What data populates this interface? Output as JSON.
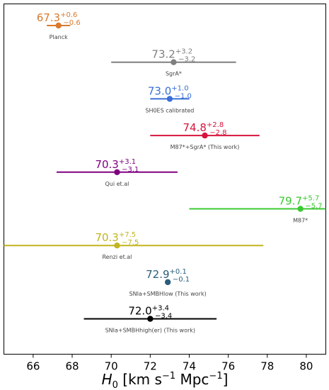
{
  "chart_data": {
    "type": "errorbar",
    "xlim": [
      64.5,
      81
    ],
    "xlabel": "H_0 [km s^-1 Mpc^-1]",
    "xticks": [
      66,
      68,
      70,
      72,
      74,
      76,
      78,
      80
    ],
    "grid": false,
    "series": [
      {
        "name": "Planck",
        "value": 67.3,
        "plus": 0.6,
        "minus": 0.6,
        "value_label": "67.3",
        "plus_label": "+0.6",
        "minus_label": "−0.6",
        "color": "#d97a2e"
      },
      {
        "name": "SgrA*",
        "value": 73.2,
        "plus": 3.2,
        "minus": 3.2,
        "value_label": "73.2",
        "plus_label": "+3.2",
        "minus_label": "−3.2",
        "color": "#7f7f7f"
      },
      {
        "name": "SH0ES calibrated",
        "value": 73.0,
        "plus": 1.0,
        "minus": 1.0,
        "value_label": "73.0",
        "plus_label": "+1.0",
        "minus_label": "−1.0",
        "color": "#3a6fd6"
      },
      {
        "name": "M87*+SgrA* (This work)",
        "value": 74.8,
        "plus": 2.8,
        "minus": 2.8,
        "value_label": "74.8",
        "plus_label": "+2.8",
        "minus_label": "−2.8",
        "color": "#d6143c"
      },
      {
        "name": "Qui et.al",
        "value": 70.3,
        "plus": 3.1,
        "minus": 3.1,
        "value_label": "70.3",
        "plus_label": "+3.1",
        "minus_label": "−3.1",
        "color": "#800080"
      },
      {
        "name": "M87*",
        "value": 79.7,
        "plus": 5.7,
        "minus": 5.7,
        "value_label": "79.7",
        "plus_label": "+5.7",
        "minus_label": "−5.7",
        "color": "#3cc832"
      },
      {
        "name": "Renzi et.al",
        "value": 70.3,
        "plus": 7.5,
        "minus": 7.5,
        "value_label": "70.3",
        "plus_label": "+7.5",
        "minus_label": "−7.5",
        "color": "#c2b51e"
      },
      {
        "name": "SNIa+SMBHlow (This work)",
        "value": 72.9,
        "plus": 0.1,
        "minus": 0.1,
        "value_label": "72.9",
        "plus_label": "+0.1",
        "minus_label": "−0.1",
        "color": "#2a5d7c"
      },
      {
        "name": "SNIa+SMBHhigh(er) (This work)",
        "value": 72.0,
        "plus": 3.4,
        "minus": 3.4,
        "value_label": "72.0",
        "plus_label": "+3.4",
        "minus_label": "−3.4",
        "color": "#000000"
      }
    ]
  }
}
